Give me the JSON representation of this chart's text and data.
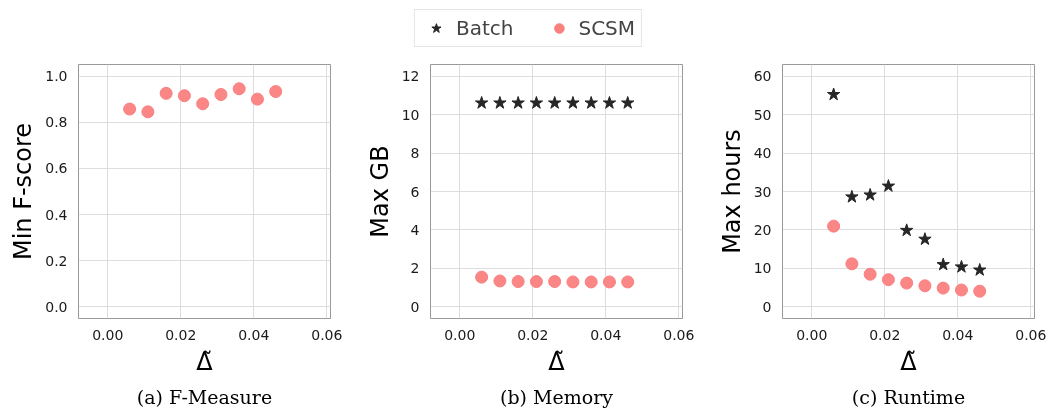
{
  "chart_data": [
    {
      "type": "scatter",
      "xlabel": "Δ̃",
      "ylabel": "Min F-score",
      "annotations": [
        "(a) F-Measure"
      ],
      "x": [
        0.006,
        0.011,
        0.016,
        0.021,
        0.026,
        0.031,
        0.036,
        0.041,
        0.046
      ],
      "xlim": [
        -0.008,
        0.061
      ],
      "xticks": [
        {
          "value": 0,
          "label": "0.00"
        },
        {
          "value": 0.02,
          "label": "0.02"
        },
        {
          "value": 0.04,
          "label": "0.04"
        },
        {
          "value": 0.06,
          "label": "0.06"
        }
      ],
      "ylim": [
        -0.05,
        1.05
      ],
      "yticks": [
        {
          "value": 0,
          "label": "0.0"
        },
        {
          "value": 0.2,
          "label": "0.2"
        },
        {
          "value": 0.4,
          "label": "0.4"
        },
        {
          "value": 0.6,
          "label": "0.6"
        },
        {
          "value": 0.8,
          "label": "0.8"
        },
        {
          "value": 1,
          "label": "1.0"
        }
      ],
      "grid": true,
      "legend": false,
      "series": [
        {
          "color": "#fa8080",
          "marker": "circle",
          "values": [
            0.857,
            0.845,
            0.925,
            0.915,
            0.88,
            0.92,
            0.945,
            0.9,
            0.933
          ]
        }
      ]
    },
    {
      "type": "scatter",
      "xlabel": "Δ̃",
      "ylabel": "Max GB",
      "annotations": [
        "(b) Memory"
      ],
      "x": [
        0.006,
        0.011,
        0.016,
        0.021,
        0.026,
        0.031,
        0.036,
        0.041,
        0.046
      ],
      "xlim": [
        -0.008,
        0.061
      ],
      "xticks": [
        {
          "value": 0,
          "label": "0.00"
        },
        {
          "value": 0.02,
          "label": "0.02"
        },
        {
          "value": 0.04,
          "label": "0.04"
        },
        {
          "value": 0.06,
          "label": "0.06"
        }
      ],
      "ylim": [
        -0.6,
        12.6
      ],
      "yticks": [
        0,
        2,
        4,
        6,
        8,
        10,
        12
      ],
      "grid": true,
      "legend": "top",
      "series": [
        {
          "name": "Batch",
          "color": "#262626",
          "marker": "star",
          "values": [
            10.6,
            10.6,
            10.6,
            10.6,
            10.6,
            10.6,
            10.6,
            10.6,
            10.6
          ]
        },
        {
          "name": "SCSM",
          "color": "#fa8080",
          "marker": "circle",
          "values": [
            1.55,
            1.35,
            1.32,
            1.32,
            1.32,
            1.3,
            1.3,
            1.3,
            1.3
          ]
        }
      ]
    },
    {
      "type": "scatter",
      "xlabel": "Δ̃",
      "ylabel": "Max hours",
      "annotations": [
        "(c) Runtime"
      ],
      "x": [
        0.006,
        0.011,
        0.016,
        0.021,
        0.026,
        0.031,
        0.036,
        0.041,
        0.046
      ],
      "xlim": [
        -0.008,
        0.061
      ],
      "xticks": [
        {
          "value": 0,
          "label": "0.00"
        },
        {
          "value": 0.02,
          "label": "0.02"
        },
        {
          "value": 0.04,
          "label": "0.04"
        },
        {
          "value": 0.06,
          "label": "0.06"
        }
      ],
      "ylim": [
        -3,
        63
      ],
      "yticks": [
        0,
        10,
        20,
        30,
        40,
        50,
        60
      ],
      "grid": true,
      "legend": false,
      "series": [
        {
          "color": "#262626",
          "marker": "star",
          "values": [
            55.2,
            28.6,
            29.1,
            31.4,
            19.9,
            17.6,
            11.0,
            10.4,
            9.6
          ]
        },
        {
          "color": "#fa8080",
          "marker": "circle",
          "values": [
            21.0,
            11.2,
            8.5,
            7.1,
            6.2,
            5.5,
            4.9,
            4.4,
            4.1
          ]
        }
      ]
    }
  ]
}
